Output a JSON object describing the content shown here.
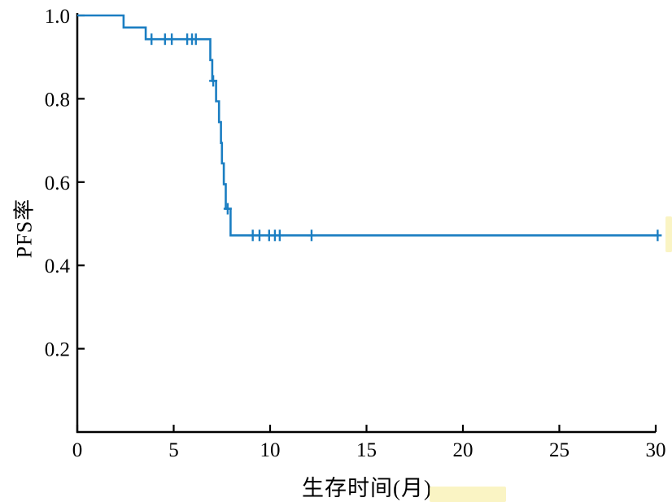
{
  "chart_data": {
    "type": "line",
    "subtype": "kaplan-meier-step",
    "title": "",
    "xlabel": "生存时间(月)",
    "ylabel": "PFS率",
    "xlim": [
      0,
      30
    ],
    "ylim": [
      0,
      1.0
    ],
    "xticks": [
      0,
      5,
      10,
      15,
      20,
      25,
      30
    ],
    "yticks": [
      0.2,
      0.4,
      0.6,
      0.8,
      1.0
    ],
    "grid": false,
    "legend": "none",
    "line_color": "#1b7ec2",
    "axis_color": "#000000",
    "series": [
      {
        "name": "PFS率",
        "steps": [
          [
            0,
            1.0
          ],
          [
            2.4,
            1.0
          ],
          [
            2.4,
            0.971
          ],
          [
            3.55,
            0.971
          ],
          [
            3.55,
            0.943
          ],
          [
            6.9,
            0.943
          ],
          [
            6.9,
            0.893
          ],
          [
            7.0,
            0.893
          ],
          [
            7.0,
            0.843
          ],
          [
            7.2,
            0.843
          ],
          [
            7.2,
            0.794
          ],
          [
            7.35,
            0.794
          ],
          [
            7.35,
            0.744
          ],
          [
            7.45,
            0.744
          ],
          [
            7.45,
            0.694
          ],
          [
            7.5,
            0.694
          ],
          [
            7.5,
            0.645
          ],
          [
            7.6,
            0.645
          ],
          [
            7.6,
            0.595
          ],
          [
            7.7,
            0.595
          ],
          [
            7.7,
            0.536
          ],
          [
            7.95,
            0.536
          ],
          [
            7.95,
            0.472
          ],
          [
            30.15,
            0.472
          ]
        ],
        "censor_marks": [
          [
            3.85,
            0.943
          ],
          [
            4.55,
            0.943
          ],
          [
            4.9,
            0.943
          ],
          [
            5.7,
            0.943
          ],
          [
            5.95,
            0.943
          ],
          [
            6.15,
            0.943
          ],
          [
            7.05,
            0.843
          ],
          [
            7.8,
            0.536
          ],
          [
            9.1,
            0.472
          ],
          [
            9.45,
            0.472
          ],
          [
            9.95,
            0.472
          ],
          [
            10.25,
            0.472
          ],
          [
            10.5,
            0.472
          ],
          [
            12.15,
            0.472
          ],
          [
            30.1,
            0.472
          ]
        ]
      }
    ]
  }
}
